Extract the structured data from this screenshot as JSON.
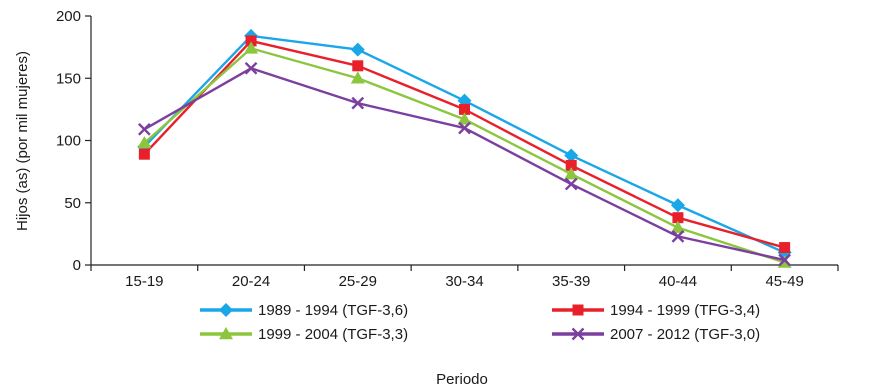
{
  "chart_data": {
    "type": "line",
    "title": "",
    "xlabel": "Periodo",
    "ylabel": "Hijos (as) (por mil mujeres)",
    "categories": [
      "15-19",
      "20-24",
      "25-29",
      "30-34",
      "35-39",
      "40-44",
      "45-49"
    ],
    "ylim": [
      0,
      200
    ],
    "yticks": [
      0,
      50,
      100,
      150,
      200
    ],
    "grid": false,
    "legend_position": "bottom",
    "series": [
      {
        "name": "1989 - 1994 (TGF-3,6)",
        "color": "#1aa7e8",
        "marker": "diamond",
        "values": [
          95,
          184,
          173,
          132,
          88,
          48,
          10
        ]
      },
      {
        "name": "1994 - 1999 (TFG-3,4)",
        "color": "#e8202a",
        "marker": "square",
        "values": [
          89,
          180,
          160,
          125,
          80,
          38,
          14
        ]
      },
      {
        "name": "1999 - 2004 (TGF-3,3)",
        "color": "#8cc63f",
        "marker": "triangle",
        "values": [
          98,
          174,
          150,
          117,
          73,
          30,
          2
        ]
      },
      {
        "name": "2007 - 2012 (TGF-3,0)",
        "color": "#7b3fa0",
        "marker": "x",
        "values": [
          109,
          158,
          130,
          110,
          65,
          23,
          4
        ]
      }
    ]
  }
}
